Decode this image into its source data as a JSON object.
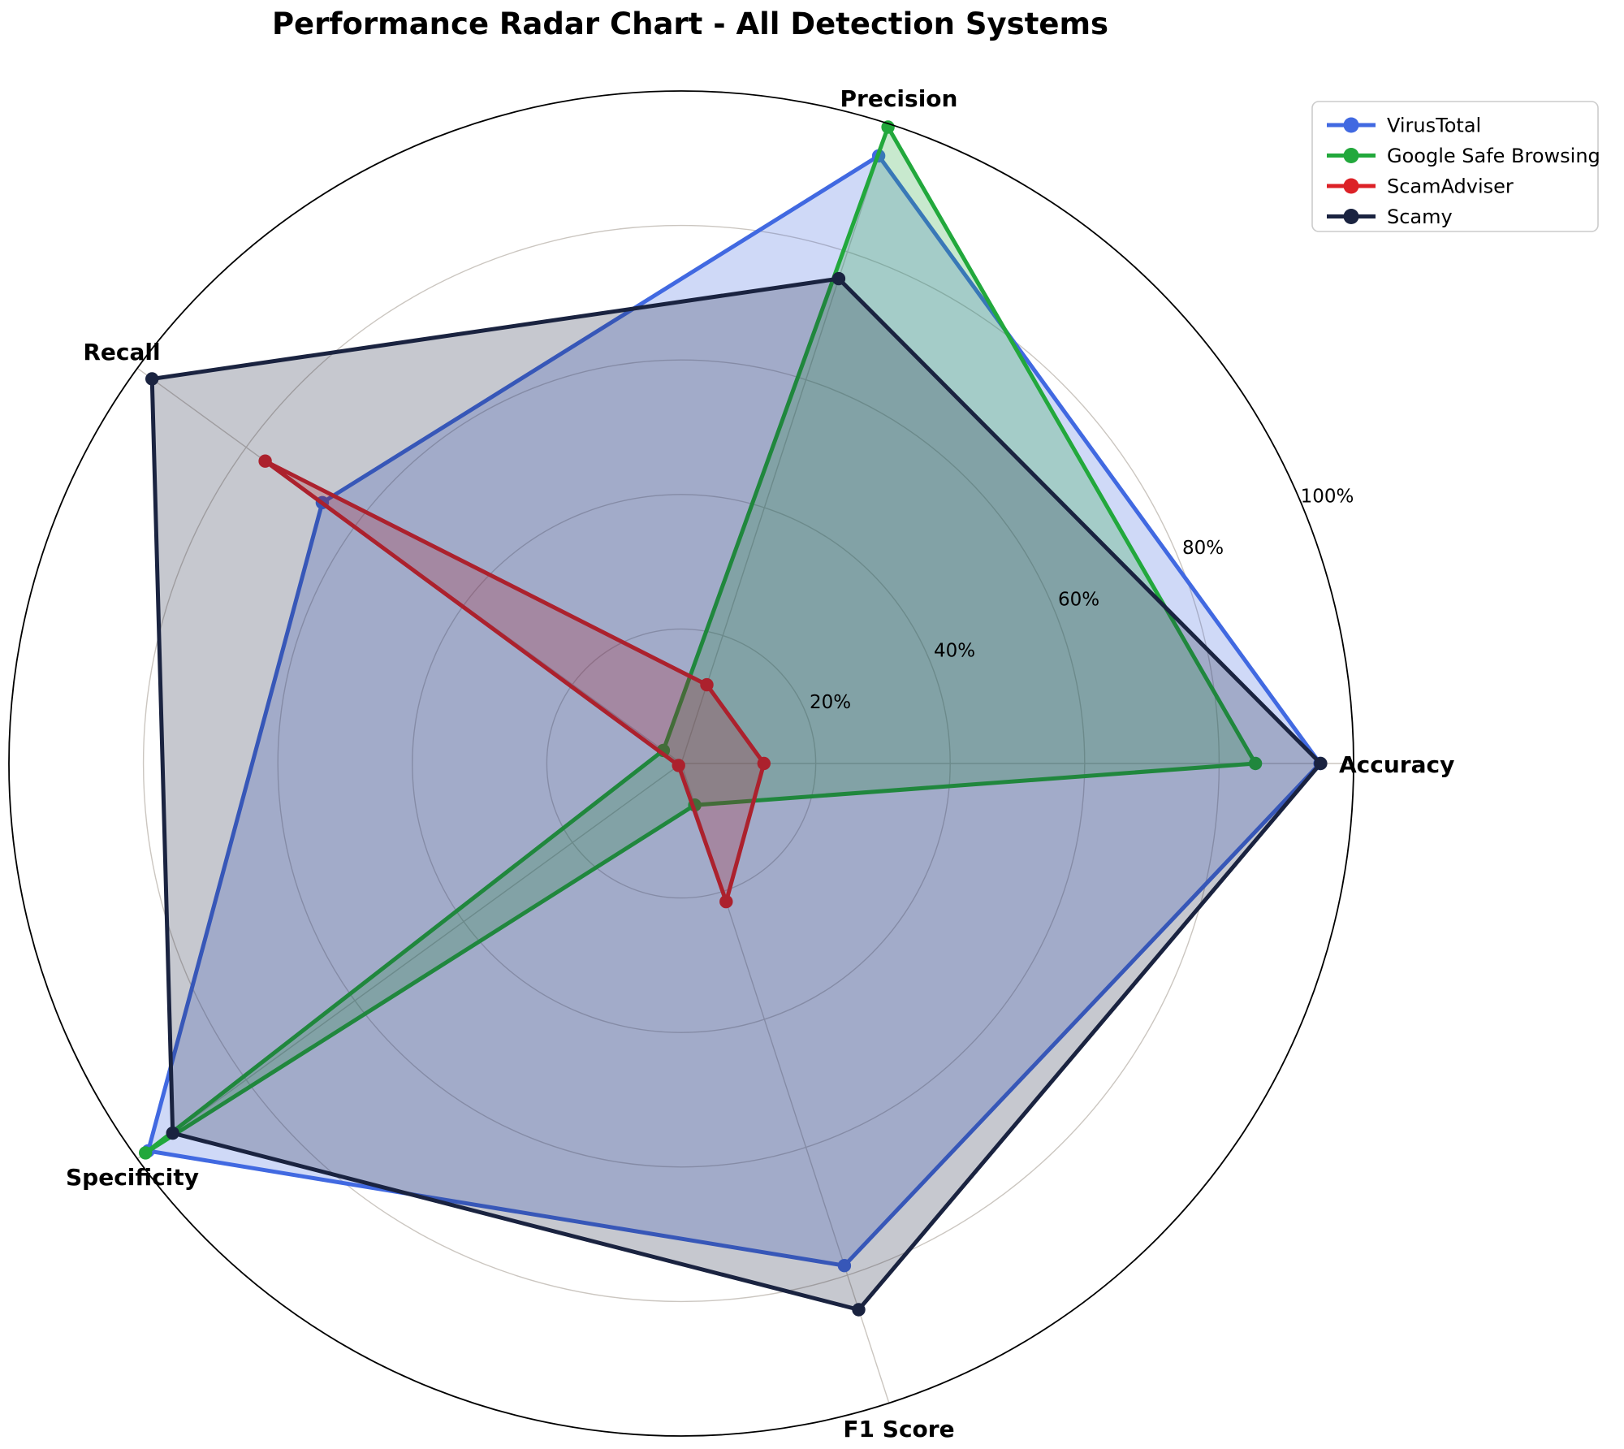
{
  "title": "Performance Radar Chart - All Detection Systems",
  "chart_data": {
    "type": "radar",
    "categories": [
      "Accuracy",
      "Precision",
      "Recall",
      "Specificity",
      "F1 Score"
    ],
    "angles_deg": [
      0,
      72,
      144,
      216,
      288
    ],
    "unit": "%",
    "ylim": [
      0,
      100
    ],
    "radial_ticks": [
      20,
      40,
      60,
      80,
      100
    ],
    "radial_tick_labels": [
      "20%",
      "40%",
      "60%",
      "80%",
      "100%"
    ],
    "radial_tick_angle_deg": 22.5,
    "grid": true,
    "legend_position": "top-right",
    "series": [
      {
        "name": "VirusTotal",
        "color": "#4169E1",
        "values": [
          95.0,
          95.0,
          66.0,
          98.0,
          78.5
        ]
      },
      {
        "name": "Google Safe Browsing",
        "color": "#22A83C",
        "values": [
          85.4,
          99.5,
          3.3,
          98.5,
          6.5
        ]
      },
      {
        "name": "ScamAdviser",
        "color": "#DC2127",
        "values": [
          12.3,
          12.3,
          76.5,
          0.5,
          21.6
        ]
      },
      {
        "name": "Scamy",
        "color": "#1A2340",
        "values": [
          95.1,
          75.8,
          97.3,
          93.5,
          85.4
        ]
      }
    ],
    "style": {
      "fill_opacity": 0.25,
      "grid_color": "#CBC6C0",
      "outer_ring_color": "#000000",
      "text_color": "#000000",
      "legend_border_color": "#CCCCCC",
      "legend_background": "#FFFFFF"
    }
  }
}
